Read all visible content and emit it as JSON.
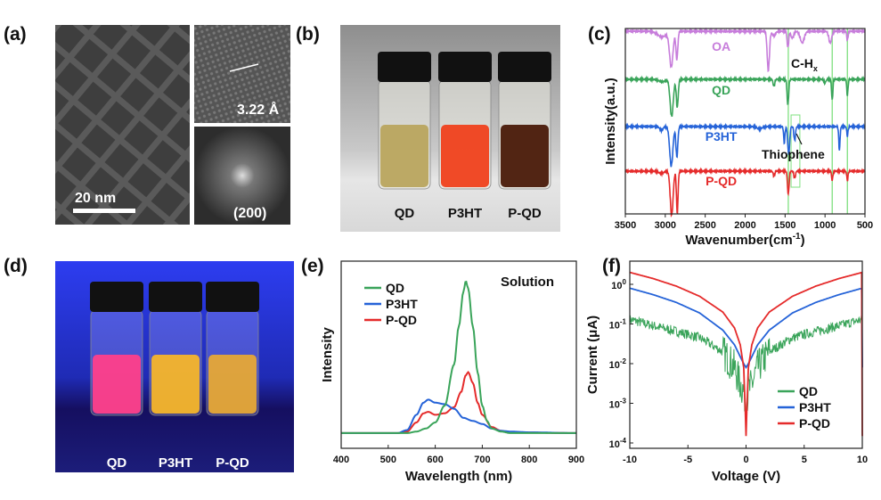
{
  "panels": {
    "a": {
      "label": "(a)",
      "scale_bar": "20 nm",
      "lattice": "3.22 Å",
      "fft_index": "(200)"
    },
    "b": {
      "label": "(b)",
      "vials": [
        "QD",
        "P3HT",
        "P-QD"
      ],
      "liquid_colors": [
        "#b9a55e",
        "#f0411c",
        "#4a1a08"
      ]
    },
    "d": {
      "label": "(d)",
      "vials": [
        "QD",
        "P3HT",
        "P-QD"
      ],
      "liquid_colors": [
        "#ff3f8a",
        "#f6b52a",
        "#e6a836"
      ]
    },
    "c": {
      "label": "(c)"
    },
    "e": {
      "label": "(e)"
    },
    "f": {
      "label": "(f)"
    }
  },
  "chart_data": [
    {
      "id": "c",
      "type": "line",
      "xlabel": "Wavenumber(cm",
      "xlabel_sup": "-1",
      "xlabel_end": ")",
      "ylabel": "Intensity(a.u.)",
      "xlim": [
        3500,
        500
      ],
      "xticks": [
        "3500",
        "3000",
        "2500",
        "2000",
        "1500",
        "1000",
        "500"
      ],
      "annotations": {
        "ch": "C-H",
        "ch_sub": "x",
        "thiophene": "Thiophene"
      },
      "marker_lines": [
        1460,
        910,
        720
      ],
      "highlight_box": [
        1425,
        1315
      ],
      "series": [
        {
          "name": "OA",
          "color": "#c77ddb",
          "offset": 3,
          "peaks": [
            [
              3040,
              0.12,
              60
            ],
            [
              2925,
              0.75,
              22
            ],
            [
              2855,
              0.6,
              12
            ],
            [
              1710,
              0.85,
              14
            ],
            [
              1465,
              0.35,
              10
            ],
            [
              1410,
              0.15,
              18
            ],
            [
              1285,
              0.25,
              25
            ],
            [
              935,
              0.25,
              18
            ],
            [
              720,
              0.2,
              8
            ],
            [
              1640,
              0.1,
              20
            ]
          ]
        },
        {
          "name": "QD",
          "color": "#3aa45a",
          "offset": 2,
          "peaks": [
            [
              3040,
              0.05,
              40
            ],
            [
              2920,
              0.8,
              20
            ],
            [
              2850,
              0.6,
              12
            ],
            [
              1640,
              0.15,
              10
            ],
            [
              1465,
              0.55,
              10
            ],
            [
              1000,
              0.08,
              10
            ],
            [
              910,
              0.45,
              8
            ],
            [
              720,
              0.35,
              8
            ]
          ]
        },
        {
          "name": "P3HT",
          "color": "#2563d8",
          "offset": 1,
          "peaks": [
            [
              3050,
              0.08,
              20
            ],
            [
              2925,
              0.85,
              20
            ],
            [
              2855,
              0.65,
              12
            ],
            [
              1510,
              0.35,
              8
            ],
            [
              1455,
              0.6,
              12
            ],
            [
              1380,
              0.3,
              10
            ],
            [
              1820,
              0.05,
              30
            ],
            [
              820,
              0.5,
              8
            ],
            [
              720,
              0.2,
              8
            ]
          ]
        },
        {
          "name": "P-QD",
          "color": "#e52b2b",
          "offset": 0,
          "peaks": [
            [
              3050,
              0.05,
              30
            ],
            [
              2920,
              0.95,
              18
            ],
            [
              2850,
              0.9,
              10
            ],
            [
              1640,
              0.1,
              10
            ],
            [
              1460,
              0.5,
              10
            ],
            [
              1380,
              0.15,
              10
            ],
            [
              910,
              0.2,
              8
            ],
            [
              720,
              0.2,
              8
            ]
          ]
        }
      ]
    },
    {
      "id": "e",
      "type": "line",
      "xlabel": "Wavelength (nm)",
      "ylabel": "Intensity",
      "annotation": "Solution",
      "xlim": [
        400,
        900
      ],
      "ylim": [
        -0.1,
        1.13
      ],
      "xticks": [
        "400",
        "500",
        "600",
        "700",
        "800",
        "900"
      ],
      "legend": "top-left",
      "series": [
        {
          "name": "QD",
          "color": "#3aa45a",
          "x": [
            400,
            540,
            560,
            580,
            600,
            620,
            640,
            650,
            660,
            665,
            670,
            680,
            690,
            700,
            710,
            720,
            740,
            760,
            900
          ],
          "y": [
            0,
            0,
            0.01,
            0.03,
            0.07,
            0.18,
            0.45,
            0.7,
            0.93,
            1.0,
            0.95,
            0.7,
            0.4,
            0.18,
            0.08,
            0.03,
            0.01,
            0,
            0
          ]
        },
        {
          "name": "P3HT",
          "color": "#2563d8",
          "x": [
            400,
            520,
            540,
            560,
            575,
            585,
            600,
            620,
            640,
            660,
            680,
            700,
            720,
            740,
            760,
            800,
            900
          ],
          "y": [
            0,
            0,
            0.02,
            0.12,
            0.2,
            0.22,
            0.2,
            0.19,
            0.16,
            0.1,
            0.08,
            0.06,
            0.03,
            0.015,
            0.01,
            0.005,
            0
          ]
        },
        {
          "name": "P-QD",
          "color": "#e52b2b",
          "x": [
            400,
            520,
            540,
            560,
            575,
            585,
            600,
            620,
            640,
            655,
            665,
            670,
            680,
            690,
            700,
            720,
            740,
            760,
            900
          ],
          "y": [
            0,
            0,
            0.01,
            0.07,
            0.13,
            0.14,
            0.12,
            0.13,
            0.17,
            0.27,
            0.38,
            0.4,
            0.33,
            0.2,
            0.12,
            0.04,
            0.015,
            0.005,
            0
          ]
        }
      ]
    },
    {
      "id": "f",
      "type": "line",
      "xlabel": "Voltage (V)",
      "ylabel": "Current (μA)",
      "xlim": [
        -10,
        10
      ],
      "ylim": [
        0.0001,
        3.8
      ],
      "yscale": "log",
      "xticks": [
        "-10",
        "-5",
        "0",
        "5",
        "10"
      ],
      "yticks": [
        {
          "base": "10",
          "exp": "0",
          "value": 1
        },
        {
          "base": "10",
          "exp": "-1",
          "value": 0.1
        },
        {
          "base": "10",
          "exp": "-2",
          "value": 0.01
        },
        {
          "base": "10",
          "exp": "-3",
          "value": 0.001
        },
        {
          "base": "10",
          "exp": "-4",
          "value": 0.0001
        }
      ],
      "legend": "bottom-right",
      "series": [
        {
          "name": "QD",
          "color": "#3aa45a",
          "abs_v": [
            10,
            8,
            6,
            4,
            2,
            1,
            0.5,
            0.2,
            0
          ],
          "current": [
            0.13,
            0.09,
            0.065,
            0.045,
            0.02,
            0.008,
            0.003,
            0.002,
            0.001
          ],
          "noisy": true
        },
        {
          "name": "P3HT",
          "color": "#2563d8",
          "abs_v": [
            10,
            8,
            6,
            4,
            2,
            1,
            0.5,
            0.2,
            0
          ],
          "current": [
            0.8,
            0.55,
            0.35,
            0.19,
            0.07,
            0.03,
            0.015,
            0.01,
            0.008
          ]
        },
        {
          "name": "P-QD",
          "color": "#e52b2b",
          "abs_v": [
            10,
            8,
            6,
            4,
            2,
            1,
            0.5,
            0.2,
            0.05,
            0
          ],
          "current": [
            2.0,
            1.4,
            0.9,
            0.5,
            0.2,
            0.08,
            0.03,
            0.008,
            0.0005,
            0.00015
          ]
        }
      ]
    }
  ]
}
